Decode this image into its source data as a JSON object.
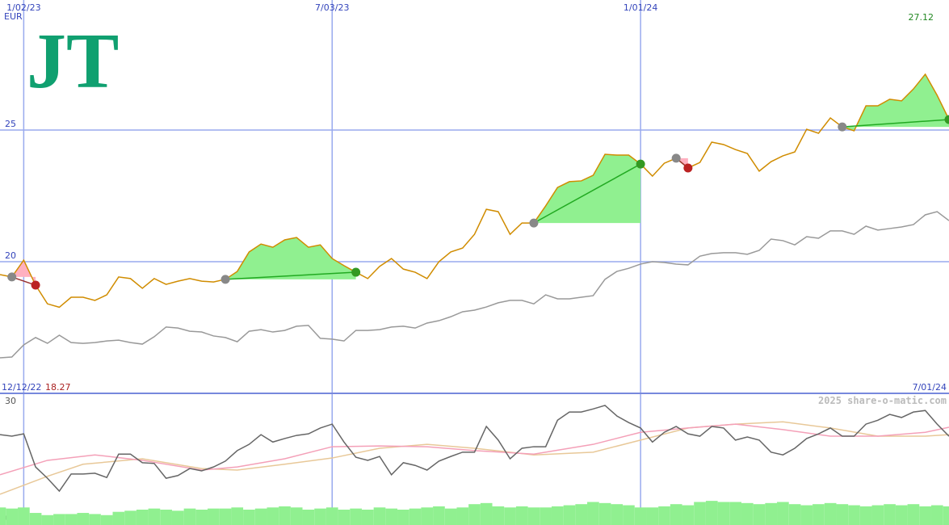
{
  "logo": "JT",
  "chart_data": [
    {
      "type": "line",
      "currency": "EUR",
      "x": [
        0,
        1,
        2,
        3,
        4,
        5,
        6,
        7,
        8,
        9,
        10,
        11,
        12,
        13,
        14,
        15,
        16,
        17,
        18,
        19,
        20,
        21,
        22,
        23,
        24,
        25,
        26,
        27,
        28,
        29,
        30,
        31,
        32,
        33,
        34,
        35,
        36,
        37,
        38,
        39,
        40,
        41,
        42,
        43,
        44,
        45,
        46,
        47,
        48,
        49,
        50,
        51,
        52,
        53,
        54,
        55,
        56,
        57,
        58,
        59,
        60,
        61,
        62,
        63,
        64,
        65,
        66,
        67,
        68,
        69,
        70,
        71,
        72,
        73,
        74,
        75,
        76,
        77,
        78,
        79,
        80
      ],
      "xlim": [
        0,
        80
      ],
      "xticks": [
        {
          "value": 2,
          "label": "1/02/23"
        },
        {
          "value": 28,
          "label": "7/03/23"
        },
        {
          "value": 54,
          "label": "1/01/24"
        }
      ],
      "range_labels": [
        "12/12/22",
        "7/01/24"
      ],
      "ylim": [
        15,
        29.94
      ],
      "yticks": [
        20,
        25
      ],
      "grid": true,
      "min_value": 18.27,
      "max_value": 27.12,
      "series": [
        {
          "color": "#999999",
          "values": [
            16.35,
            16.38,
            16.84,
            17.12,
            16.9,
            17.21,
            16.93,
            16.9,
            16.93,
            16.99,
            17.02,
            16.93,
            16.87,
            17.15,
            17.52,
            17.48,
            17.36,
            17.33,
            17.18,
            17.12,
            16.96,
            17.36,
            17.42,
            17.33,
            17.39,
            17.55,
            17.58,
            17.09,
            17.06,
            16.99,
            17.39,
            17.39,
            17.42,
            17.52,
            17.55,
            17.48,
            17.67,
            17.76,
            17.91,
            18.1,
            18.16,
            18.28,
            18.44,
            18.53,
            18.53,
            18.4,
            18.74,
            18.59,
            18.59,
            18.65,
            18.71,
            19.33,
            19.63,
            19.75,
            19.91,
            20.0,
            19.97,
            19.91,
            19.88,
            20.21,
            20.31,
            20.34,
            20.34,
            20.28,
            20.43,
            20.86,
            20.8,
            20.64,
            20.95,
            20.89,
            21.17,
            21.17,
            21.04,
            21.35,
            21.2,
            21.26,
            21.32,
            21.41,
            21.78,
            21.9,
            21.56
          ]
        },
        {
          "color": "#d08c00",
          "values": [
            19.51,
            19.42,
            20.06,
            19.11,
            18.4,
            18.27,
            18.65,
            18.65,
            18.53,
            18.74,
            19.42,
            19.36,
            18.99,
            19.36,
            19.14,
            19.26,
            19.36,
            19.26,
            19.23,
            19.33,
            19.63,
            20.37,
            20.67,
            20.55,
            20.83,
            20.92,
            20.55,
            20.64,
            20.12,
            19.85,
            19.6,
            19.36,
            19.82,
            20.12,
            19.72,
            19.6,
            19.36,
            20.0,
            20.37,
            20.52,
            21.04,
            21.99,
            21.9,
            21.04,
            21.47,
            21.47,
            22.12,
            22.82,
            23.04,
            23.07,
            23.28,
            24.08,
            24.05,
            24.05,
            23.71,
            23.25,
            23.74,
            23.93,
            23.56,
            23.77,
            24.54,
            24.45,
            24.26,
            24.11,
            23.44,
            23.8,
            24.02,
            24.17,
            25.03,
            24.88,
            25.46,
            25.12,
            24.97,
            25.92,
            25.92,
            26.17,
            26.11,
            26.56,
            27.12,
            26.32,
            25.4
          ]
        }
      ],
      "signals": [
        {
          "start": 1,
          "end": 3,
          "fill": "#ffb0c0",
          "line": "#993333",
          "start_color": "#888888",
          "end_color": "#bb2222"
        },
        {
          "start": 19,
          "end": 30,
          "fill": "#90f090",
          "line": "#22aa22",
          "start_color": "#888888",
          "end_color": "#339922"
        },
        {
          "start": 45,
          "end": 54,
          "fill": "#90f090",
          "line": "#22aa22",
          "start_color": "#888888",
          "end_color": "#339922"
        },
        {
          "start": 57,
          "end": 58,
          "fill": "#ffb0c0",
          "line": "#993333",
          "start_color": "#888888",
          "end_color": "#bb2222"
        },
        {
          "start": 71,
          "end": 80,
          "fill": "#90f090",
          "line": "#22aa22",
          "start_color": "#888888",
          "end_color": "#339922"
        }
      ]
    },
    {
      "type": "line",
      "watermark": "2025 share-o-matic.com",
      "xlim": [
        0,
        80
      ],
      "ylim": [
        -1.9,
        31.9
      ],
      "yticks": [
        0,
        30
      ],
      "series": [
        {
          "color": "#e8c898",
          "x": [
            0,
            4,
            7,
            12,
            17,
            20,
            24,
            28,
            32,
            36,
            40,
            45,
            50,
            54,
            58,
            62,
            66,
            70,
            74,
            78,
            80
          ],
          "values": [
            6.0,
            10.6,
            13.7,
            15.1,
            12.6,
            12.2,
            13.7,
            15.3,
            17.8,
            18.8,
            17.8,
            16.1,
            16.8,
            19.9,
            23.0,
            24.0,
            24.6,
            23.0,
            20.9,
            20.9,
            21.3
          ]
        },
        {
          "color": "#f4a0b8",
          "x": [
            0,
            4,
            8,
            12,
            17,
            20,
            24,
            28,
            32,
            36,
            40,
            45,
            50,
            54,
            58,
            62,
            66,
            70,
            74,
            78,
            80
          ],
          "values": [
            11.0,
            14.7,
            16.1,
            14.7,
            12.2,
            13.0,
            15.1,
            18.2,
            18.4,
            18.2,
            17.2,
            16.3,
            18.8,
            21.9,
            23.0,
            24.0,
            22.6,
            20.9,
            20.9,
            21.9,
            23.2
          ]
        },
        {
          "color": "#666666",
          "x": [
            0,
            1,
            2,
            3,
            4,
            5,
            6,
            7,
            8,
            9,
            10,
            11,
            12,
            13,
            14,
            15,
            16,
            17,
            18,
            19,
            20,
            21,
            22,
            23,
            24,
            25,
            26,
            27,
            28,
            29,
            30,
            31,
            32,
            33,
            34,
            35,
            36,
            37,
            38,
            39,
            40,
            41,
            42,
            43,
            44,
            45,
            46,
            47,
            48,
            49,
            50,
            51,
            52,
            53,
            54,
            55,
            56,
            57,
            58,
            59,
            60,
            61,
            62,
            63,
            64,
            65,
            66,
            67,
            68,
            69,
            70,
            71,
            72,
            73,
            74,
            75,
            76,
            77,
            78,
            79,
            80
          ],
          "values": [
            21.3,
            20.9,
            21.5,
            13.0,
            10.1,
            6.8,
            11.2,
            11.2,
            11.4,
            10.3,
            16.3,
            16.3,
            14.1,
            13.9,
            10.1,
            10.8,
            12.6,
            12.0,
            13.0,
            14.5,
            17.2,
            18.8,
            21.3,
            19.4,
            20.3,
            21.1,
            21.5,
            23.0,
            24.0,
            19.4,
            15.5,
            14.7,
            15.7,
            11.0,
            14.1,
            13.4,
            12.2,
            14.5,
            15.7,
            16.8,
            16.8,
            23.4,
            19.9,
            15.1,
            17.8,
            18.2,
            18.2,
            25.0,
            27.1,
            27.1,
            27.9,
            28.8,
            26.1,
            24.4,
            23.0,
            19.4,
            21.9,
            23.4,
            21.5,
            20.9,
            23.4,
            23.0,
            19.9,
            20.7,
            19.9,
            16.8,
            16.1,
            17.8,
            20.3,
            21.5,
            23.0,
            20.9,
            20.9,
            24.0,
            25.0,
            26.5,
            25.7,
            27.1,
            27.5,
            24.0,
            20.9
          ]
        }
      ],
      "volume": {
        "color": "#90f090",
        "ylim": [
          0,
          120
        ],
        "values": [
          16,
          15,
          16,
          11,
          9,
          10,
          10,
          11,
          10,
          9,
          12,
          13,
          14,
          15,
          14,
          13,
          15,
          14,
          15,
          15,
          16,
          14,
          15,
          16,
          17,
          16,
          14,
          15,
          16,
          14,
          15,
          14,
          16,
          15,
          14,
          15,
          16,
          17,
          15,
          16,
          19,
          20,
          17,
          16,
          17,
          16,
          16,
          17,
          18,
          19,
          21,
          20,
          19,
          18,
          16,
          16,
          17,
          19,
          18,
          21,
          22,
          21,
          21,
          20,
          19,
          20,
          21,
          19,
          18,
          19,
          20,
          19,
          18,
          17,
          18,
          19,
          18,
          19,
          17,
          18,
          17
        ]
      }
    }
  ]
}
